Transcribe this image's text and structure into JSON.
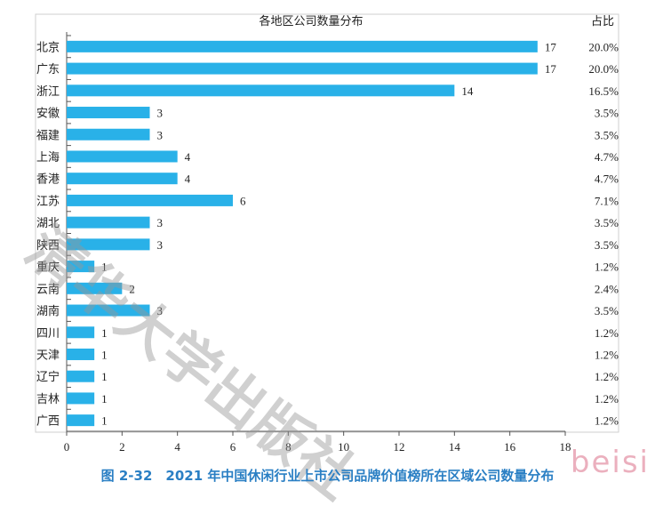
{
  "chart_data": {
    "type": "bar",
    "orientation": "horizontal",
    "title": "各地区公司数量分布",
    "pct_header": "占比",
    "categories": [
      "北京",
      "广东",
      "浙江",
      "安徽",
      "福建",
      "上海",
      "香港",
      "江苏",
      "湖北",
      "陕西",
      "重庆",
      "云南",
      "湖南",
      "四川",
      "天津",
      "辽宁",
      "吉林",
      "广西"
    ],
    "values": [
      17,
      17,
      14,
      3,
      3,
      4,
      4,
      6,
      3,
      3,
      1,
      2,
      3,
      1,
      1,
      1,
      1,
      1
    ],
    "percentages": [
      "20.0%",
      "20.0%",
      "16.5%",
      "3.5%",
      "3.5%",
      "4.7%",
      "4.7%",
      "7.1%",
      "3.5%",
      "3.5%",
      "1.2%",
      "2.4%",
      "3.5%",
      "1.2%",
      "1.2%",
      "1.2%",
      "1.2%",
      "1.2%"
    ],
    "xlim": [
      0,
      18
    ],
    "xticks": [
      0,
      2,
      4,
      6,
      8,
      10,
      12,
      14,
      16,
      18
    ],
    "bar_color": "#29b1e8",
    "grid": false
  },
  "caption": "图 2-32　2021 年中国休闲行业上市公司品牌价值榜所在区域公司数量分布",
  "watermark": {
    "text": "清华大学出版社",
    "corner": "beisi"
  }
}
